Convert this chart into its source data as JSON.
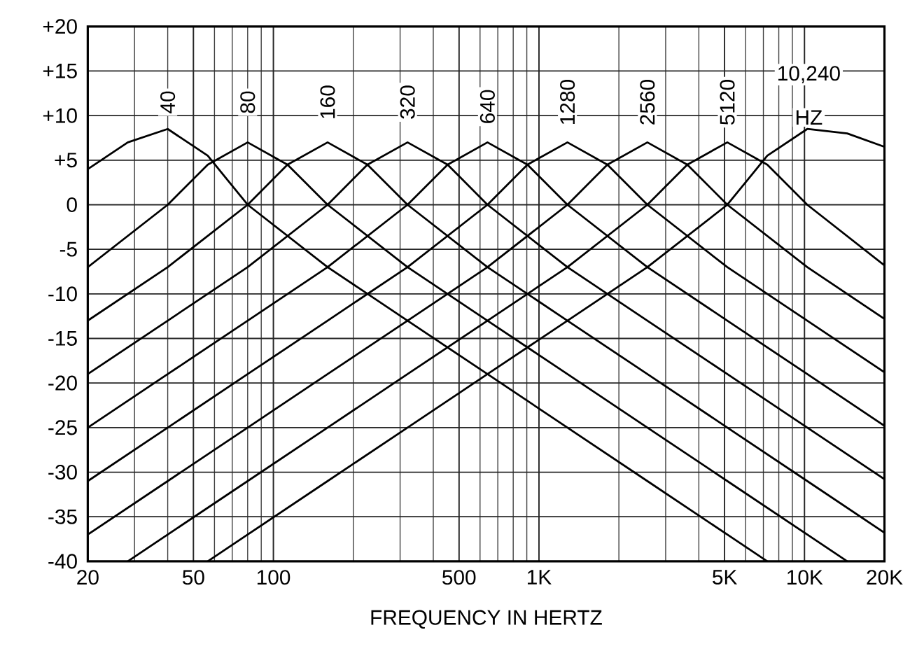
{
  "chart_data": {
    "type": "line",
    "xlabel": "FREQUENCY IN HERTZ",
    "log": "x",
    "grid": true,
    "marker": "none",
    "line_style": "solid",
    "xlim": [
      20,
      20000
    ],
    "ylim": [
      -40,
      20
    ],
    "xticks": [
      20,
      50,
      100,
      500,
      {
        "value": 1000,
        "label": "1K"
      },
      {
        "value": 5000,
        "label": "5K"
      },
      {
        "value": 10000,
        "label": "10K"
      },
      {
        "value": 20000,
        "label": "20K"
      }
    ],
    "yticks": [
      -40,
      -35,
      -30,
      -25,
      -20,
      -15,
      -10,
      -5,
      0,
      {
        "value": 5,
        "label": "+5"
      },
      {
        "value": 10,
        "label": "+10"
      },
      {
        "value": 15,
        "label": "+15"
      },
      {
        "value": 20,
        "label": "+20"
      }
    ],
    "series": [
      {
        "color": "#000000",
        "x": [
          20,
          28.3,
          40,
          56.6,
          80,
          160,
          320,
          640,
          1280,
          2560,
          5120,
          7241
        ],
        "values": [
          4,
          7,
          8.5,
          5.5,
          0,
          -7,
          -13,
          -19,
          -25,
          -31,
          -37,
          -40
        ]
      },
      {
        "color": "#000000",
        "x": [
          20,
          40,
          56.6,
          80,
          113,
          160,
          320,
          640,
          1280,
          2560,
          5120,
          10240,
          14482
        ],
        "values": [
          -7,
          0,
          4.5,
          7,
          4.5,
          0,
          -7,
          -13,
          -19,
          -25,
          -31,
          -37,
          -40
        ]
      },
      {
        "color": "#000000",
        "x": [
          20,
          40,
          80,
          113,
          160,
          226,
          320,
          640,
          1280,
          2560,
          5120,
          10240,
          20000
        ],
        "values": [
          -13,
          -7,
          0,
          4.5,
          7,
          4.5,
          0,
          -7,
          -13,
          -19,
          -25,
          -31,
          -36.8
        ]
      },
      {
        "color": "#000000",
        "x": [
          20,
          40,
          80,
          160,
          226,
          320,
          453,
          640,
          1280,
          2560,
          5120,
          10240,
          20000
        ],
        "values": [
          -19,
          -13,
          -7,
          0,
          4.5,
          7,
          4.5,
          0,
          -7,
          -13,
          -19,
          -25,
          -30.8
        ]
      },
      {
        "color": "#000000",
        "x": [
          20,
          40,
          80,
          160,
          320,
          453,
          640,
          905,
          1280,
          2560,
          5120,
          10240,
          20000
        ],
        "values": [
          -25,
          -19,
          -13,
          -7,
          0,
          4.5,
          7,
          4.5,
          0,
          -7,
          -13,
          -19,
          -24.8
        ]
      },
      {
        "color": "#000000",
        "x": [
          20,
          40,
          80,
          160,
          320,
          640,
          905,
          1280,
          1810,
          2560,
          5120,
          10240,
          20000
        ],
        "values": [
          -31,
          -25,
          -19,
          -13,
          -7,
          0,
          4.5,
          7,
          4.5,
          0,
          -7,
          -13,
          -18.8
        ]
      },
      {
        "color": "#000000",
        "x": [
          20,
          40,
          80,
          160,
          320,
          640,
          1280,
          1810,
          2560,
          3620,
          5120,
          10240,
          20000
        ],
        "values": [
          -37,
          -31,
          -25,
          -19,
          -13,
          -7,
          0,
          4.5,
          7,
          4.5,
          0,
          -7,
          -12.8
        ]
      },
      {
        "color": "#000000",
        "x": [
          28.3,
          40,
          80,
          160,
          320,
          640,
          1280,
          2560,
          3620,
          5120,
          7241,
          10240,
          20000
        ],
        "values": [
          -40,
          -37,
          -31,
          -25,
          -19,
          -13,
          -7,
          0,
          4.5,
          7,
          4.5,
          0,
          -6.8
        ]
      },
      {
        "color": "#000000",
        "x": [
          56.6,
          80,
          160,
          320,
          640,
          1280,
          2560,
          5120,
          7241,
          10240,
          14482,
          20000
        ],
        "values": [
          -40,
          -37,
          -31,
          -25,
          -19,
          -13,
          -7,
          0,
          5.5,
          8.5,
          8,
          6.5
        ]
      }
    ],
    "annotations": [
      {
        "text": "40",
        "x": 40,
        "y": 11.5
      },
      {
        "text": "80",
        "x": 80,
        "y": 11.5
      },
      {
        "text": "160",
        "x": 160,
        "y": 11.5
      },
      {
        "text": "320",
        "x": 320,
        "y": 11.5
      },
      {
        "text": "640",
        "x": 640,
        "y": 11
      },
      {
        "text": "1280",
        "x": 1280,
        "y": 11.5
      },
      {
        "text": "2560",
        "x": 2560,
        "y": 11.5
      },
      {
        "text": "5120",
        "x": 5120,
        "y": 11.5
      },
      "10,240",
      "HZ"
    ]
  }
}
